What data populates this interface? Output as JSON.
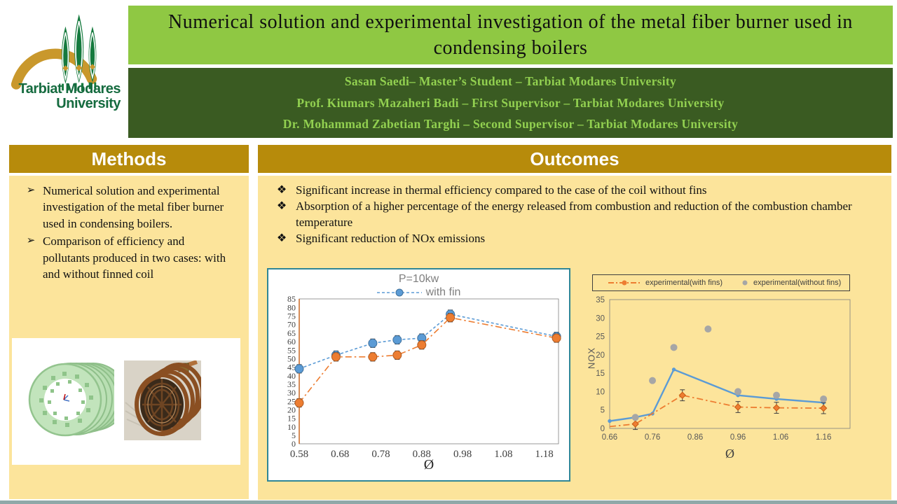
{
  "poster": {
    "title": "Numerical solution and experimental investigation of the metal fiber burner used in condensing boilers",
    "authors": [
      "Sasan Saedi– Master’s Student – Tarbiat Modares University",
      "Prof. Kiumars Mazaheri Badi – First Supervisor – Tarbiat Modares University",
      "Dr. Mohammad Zabetian Targhi – Second Supervisor – Tarbiat Modares University"
    ],
    "logo": {
      "line1": "Tarbiat Modares",
      "line2": "University"
    }
  },
  "methods": {
    "header": "Methods",
    "marker": "➢",
    "bullets": [
      "Numerical solution and experimental investigation of the metal fiber burner used in condensing boilers.",
      "Comparison of efficiency and pollutants produced in two cases: with and without finned coil"
    ]
  },
  "outcomes": {
    "header": "Outcomes",
    "marker": "❖",
    "bullets": [
      "Significant increase in thermal efficiency compared to the case of the coil without fins",
      "Absorption of a higher percentage of the energy released from combustion and reduction of the combustion chamber temperature",
      "Significant reduction of NOx emissions"
    ]
  },
  "colors": {
    "title_bar_green": "#8FC843",
    "authors_bar_green": "#3A5B22",
    "authors_text_green": "#92D050",
    "header_gold": "#B78B0B",
    "panel_yellow": "#FCE49B",
    "chart1_border_teal": "#2F8696",
    "series_blue": "#5B9BD5",
    "series_orange": "#ED7D31",
    "series_gray": "#A6A6A6"
  },
  "chart_data": [
    {
      "type": "line",
      "title": "P=10kw",
      "xlabel": "Ø",
      "ylabel": "",
      "xlim": [
        0.58,
        1.215
      ],
      "ylim": [
        0,
        85
      ],
      "ystep": 5,
      "x_ticks": [
        0.58,
        0.68,
        0.78,
        0.88,
        0.98,
        1.08,
        1.18
      ],
      "grid": false,
      "legend_position": "top",
      "series": [
        {
          "name": "with fin",
          "color": "#5B9BD5",
          "edge": "#41719C",
          "line": "dashed",
          "marker": "circle",
          "msize": 6,
          "error": 2.5,
          "mskip": 0,
          "x": [
            0.58,
            0.67,
            0.76,
            0.82,
            0.88,
            0.95,
            1.21
          ],
          "y": [
            44,
            52,
            59,
            61,
            62,
            76,
            63
          ]
        },
        {
          "name": "",
          "color": "#ED7D31",
          "edge": "#AE5A21",
          "line": "dashdot",
          "marker": "circle",
          "msize": 6,
          "error": 2.5,
          "mskip": 0,
          "x": [
            0.58,
            0.67,
            0.76,
            0.82,
            0.88,
            0.95,
            1.21
          ],
          "y": [
            24,
            51,
            51,
            52,
            58,
            74,
            62
          ]
        }
      ]
    },
    {
      "type": "line+scatter",
      "title": "",
      "xlabel": "Ø",
      "ylabel": "NOX",
      "xlim": [
        0.66,
        1.222
      ],
      "ylim": [
        0,
        35
      ],
      "ystep": 5,
      "x_ticks": [
        0.66,
        0.76,
        0.86,
        0.96,
        1.06,
        1.16
      ],
      "grid": false,
      "legend_position": "top",
      "legend": [
        {
          "name": "experimental(with fins)"
        },
        {
          "name": "experimental(without fins)"
        }
      ],
      "series": [
        {
          "name": "",
          "color": "#5B9BD5",
          "edge": "#5B9BD5",
          "line": "solid",
          "width": 2.4,
          "marker": "circle",
          "msize": 2.2,
          "error": 0,
          "mskip": 0,
          "x": [
            0.66,
            0.72,
            0.76,
            0.81,
            0.96,
            1.05,
            1.16
          ],
          "y": [
            2,
            3,
            4,
            16,
            9,
            8,
            7
          ]
        },
        {
          "name": "experimental(with fins)",
          "color": "#ED7D31",
          "edge": "#C55A11",
          "line": "dashdot",
          "width": 1.8,
          "marker": "diamond",
          "msize": 4.5,
          "error": 1.5,
          "mskip": 1,
          "x": [
            0.66,
            0.72,
            0.83,
            0.96,
            1.05,
            1.16
          ],
          "y": [
            0.5,
            1.2,
            9,
            5.8,
            5.6,
            5.5
          ]
        },
        {
          "name": "experimental(without fins)",
          "color": "#A6A6A6",
          "edge": "#A6A6A6",
          "line": "none",
          "marker": "circle",
          "msize": 4.5,
          "error": 0,
          "mskip": 0,
          "x": [
            0.72,
            0.76,
            0.81,
            0.89,
            0.96,
            1.05,
            1.16
          ],
          "y": [
            3,
            13,
            22,
            27,
            10,
            9,
            8
          ]
        }
      ]
    }
  ]
}
